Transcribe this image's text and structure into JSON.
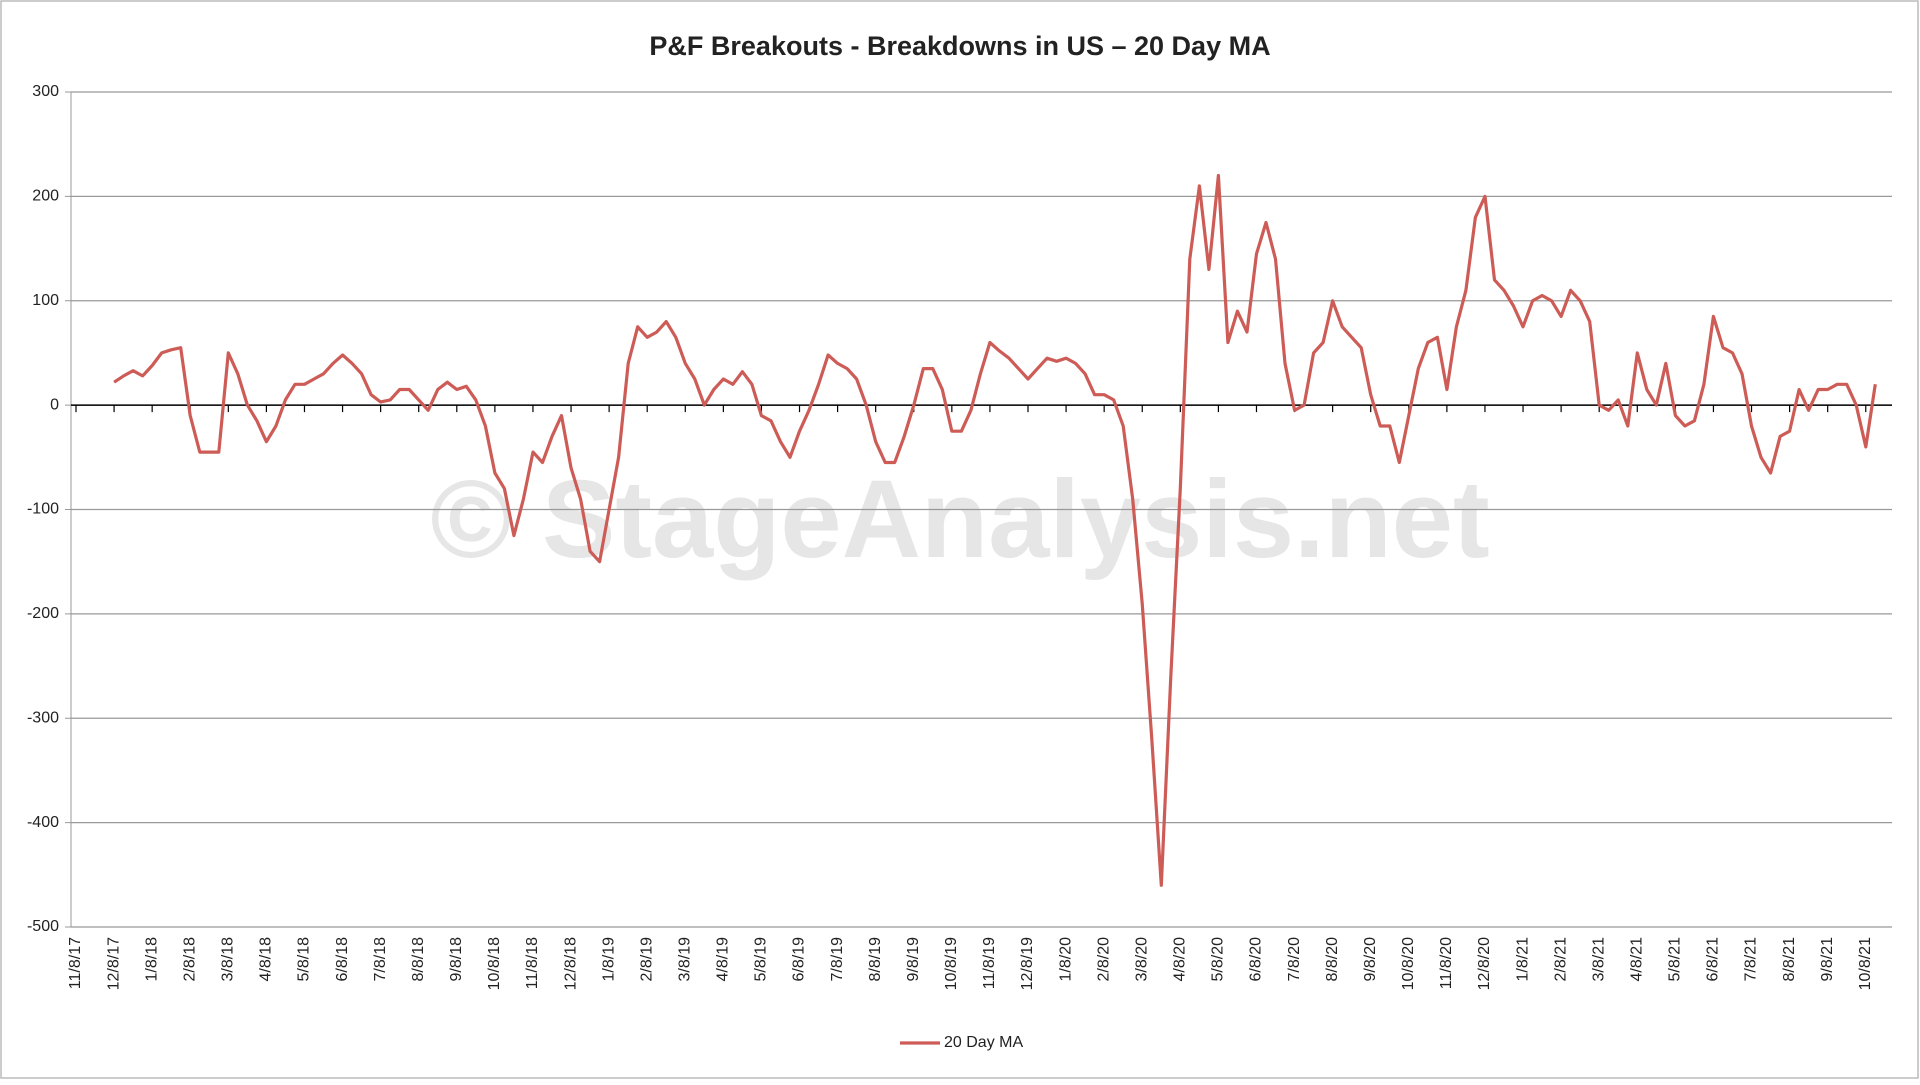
{
  "chart_data": {
    "type": "line",
    "title": "P&F Breakouts - Breakdowns in US – 20 Day MA",
    "watermark": "© StageAnalysis.net",
    "categories": [
      "11/8/17",
      null,
      null,
      null,
      "12/8/17",
      null,
      null,
      null,
      "1/8/18",
      null,
      null,
      null,
      "2/8/18",
      null,
      null,
      null,
      "3/8/18",
      null,
      null,
      null,
      "4/8/18",
      null,
      null,
      null,
      "5/8/18",
      null,
      null,
      null,
      "6/8/18",
      null,
      null,
      null,
      "7/8/18",
      null,
      null,
      null,
      "8/8/18",
      null,
      null,
      null,
      "9/8/18",
      null,
      null,
      null,
      "10/8/18",
      null,
      null,
      null,
      "11/8/18",
      null,
      null,
      null,
      "12/8/18",
      null,
      null,
      null,
      "1/8/19",
      null,
      null,
      null,
      "2/8/19",
      null,
      null,
      null,
      "3/8/19",
      null,
      null,
      null,
      "4/8/19",
      null,
      null,
      null,
      "5/8/19",
      null,
      null,
      null,
      "6/8/19",
      null,
      null,
      null,
      "7/8/19",
      null,
      null,
      null,
      "8/8/19",
      null,
      null,
      null,
      "9/8/19",
      null,
      null,
      null,
      "10/8/19",
      null,
      null,
      null,
      "11/8/19",
      null,
      null,
      null,
      "12/8/19",
      null,
      null,
      null,
      "1/8/20",
      null,
      null,
      null,
      "2/8/20",
      null,
      null,
      null,
      "3/8/20",
      null,
      null,
      null,
      "4/8/20",
      null,
      null,
      null,
      "5/8/20",
      null,
      null,
      null,
      "6/8/20",
      null,
      null,
      null,
      "7/8/20",
      null,
      null,
      null,
      "8/8/20",
      null,
      null,
      null,
      "9/8/20",
      null,
      null,
      null,
      "10/8/20",
      null,
      null,
      null,
      "11/8/20",
      null,
      null,
      null,
      "12/8/20",
      null,
      null,
      null,
      "1/8/21",
      null,
      null,
      null,
      "2/8/21",
      null,
      null,
      null,
      "3/8/21",
      null,
      null,
      null,
      "4/8/21",
      null,
      null,
      null,
      "5/8/21",
      null,
      null,
      null,
      "6/8/21",
      null,
      null,
      null,
      "7/8/21",
      null,
      null,
      null,
      "8/8/21",
      null,
      null,
      null,
      "9/8/21",
      null,
      null,
      null,
      "10/8/21",
      null
    ],
    "series": [
      {
        "name": "20 Day MA",
        "color": "#cd5c57",
        "values": [
          null,
          null,
          null,
          null,
          22,
          28,
          33,
          28,
          38,
          50,
          53,
          55,
          -10,
          -45,
          -45,
          -45,
          50,
          30,
          0,
          -15,
          -35,
          -20,
          5,
          20,
          20,
          25,
          30,
          40,
          48,
          40,
          30,
          10,
          3,
          5,
          15,
          15,
          5,
          -5,
          15,
          22,
          15,
          18,
          5,
          -20,
          -65,
          -80,
          -125,
          -90,
          -45,
          -55,
          -30,
          -10,
          -60,
          -90,
          -140,
          -150,
          -100,
          -50,
          40,
          75,
          65,
          70,
          80,
          65,
          40,
          25,
          0,
          15,
          25,
          20,
          32,
          20,
          -10,
          -15,
          -35,
          -50,
          -25,
          -5,
          20,
          48,
          40,
          35,
          25,
          0,
          -35,
          -55,
          -55,
          -30,
          0,
          35,
          35,
          15,
          -25,
          -25,
          -5,
          30,
          60,
          52,
          45,
          35,
          25,
          35,
          45,
          42,
          45,
          40,
          30,
          10,
          10,
          5,
          -20,
          -90,
          -190,
          -320,
          -460,
          -260,
          -80,
          140,
          210,
          130,
          220,
          60,
          90,
          70,
          145,
          175,
          140,
          40,
          -5,
          0,
          50,
          60,
          100,
          75,
          65,
          55,
          10,
          -20,
          -20,
          -55,
          -10,
          35,
          60,
          65,
          15,
          75,
          110,
          180,
          200,
          120,
          110,
          95,
          75,
          100,
          105,
          100,
          85,
          110,
          100,
          80,
          0,
          -5,
          5,
          -20,
          50,
          15,
          0,
          40,
          -10,
          -20,
          -15,
          20,
          85,
          55,
          50,
          30,
          -20,
          -50,
          -65,
          -30,
          -25,
          15,
          -5,
          15,
          15,
          20,
          20,
          0,
          -40,
          20
        ]
      }
    ],
    "ylim": [
      -500,
      300
    ],
    "yticks": [
      -500,
      -400,
      -300,
      -200,
      -100,
      0,
      100,
      200,
      300
    ],
    "grid": true,
    "legend": "bottom"
  }
}
